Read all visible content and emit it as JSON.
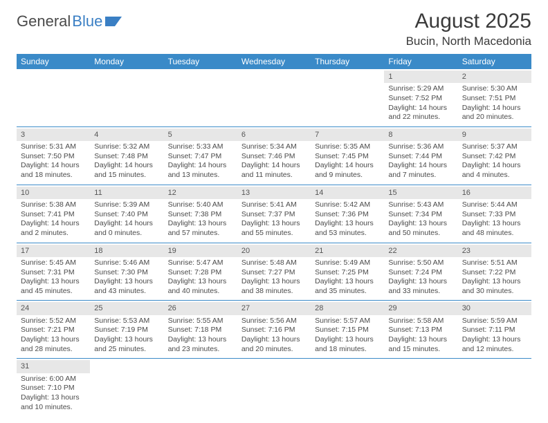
{
  "logo": {
    "word1": "General",
    "word2": "Blue"
  },
  "title": "August 2025",
  "location": "Bucin, North Macedonia",
  "colors": {
    "header_bg": "#3a8ac8",
    "header_text": "#ffffff",
    "daynum_bg": "#e7e7e7",
    "border": "#3a8ac8",
    "text": "#4a4a4a",
    "logo_blue": "#3a7fc4"
  },
  "weekdays": [
    "Sunday",
    "Monday",
    "Tuesday",
    "Wednesday",
    "Thursday",
    "Friday",
    "Saturday"
  ],
  "weeks": [
    [
      {
        "empty": true
      },
      {
        "empty": true
      },
      {
        "empty": true
      },
      {
        "empty": true
      },
      {
        "empty": true
      },
      {
        "day": "1",
        "sunrise": "Sunrise: 5:29 AM",
        "sunset": "Sunset: 7:52 PM",
        "daylight1": "Daylight: 14 hours",
        "daylight2": "and 22 minutes."
      },
      {
        "day": "2",
        "sunrise": "Sunrise: 5:30 AM",
        "sunset": "Sunset: 7:51 PM",
        "daylight1": "Daylight: 14 hours",
        "daylight2": "and 20 minutes."
      }
    ],
    [
      {
        "day": "3",
        "sunrise": "Sunrise: 5:31 AM",
        "sunset": "Sunset: 7:50 PM",
        "daylight1": "Daylight: 14 hours",
        "daylight2": "and 18 minutes."
      },
      {
        "day": "4",
        "sunrise": "Sunrise: 5:32 AM",
        "sunset": "Sunset: 7:48 PM",
        "daylight1": "Daylight: 14 hours",
        "daylight2": "and 15 minutes."
      },
      {
        "day": "5",
        "sunrise": "Sunrise: 5:33 AM",
        "sunset": "Sunset: 7:47 PM",
        "daylight1": "Daylight: 14 hours",
        "daylight2": "and 13 minutes."
      },
      {
        "day": "6",
        "sunrise": "Sunrise: 5:34 AM",
        "sunset": "Sunset: 7:46 PM",
        "daylight1": "Daylight: 14 hours",
        "daylight2": "and 11 minutes."
      },
      {
        "day": "7",
        "sunrise": "Sunrise: 5:35 AM",
        "sunset": "Sunset: 7:45 PM",
        "daylight1": "Daylight: 14 hours",
        "daylight2": "and 9 minutes."
      },
      {
        "day": "8",
        "sunrise": "Sunrise: 5:36 AM",
        "sunset": "Sunset: 7:44 PM",
        "daylight1": "Daylight: 14 hours",
        "daylight2": "and 7 minutes."
      },
      {
        "day": "9",
        "sunrise": "Sunrise: 5:37 AM",
        "sunset": "Sunset: 7:42 PM",
        "daylight1": "Daylight: 14 hours",
        "daylight2": "and 4 minutes."
      }
    ],
    [
      {
        "day": "10",
        "sunrise": "Sunrise: 5:38 AM",
        "sunset": "Sunset: 7:41 PM",
        "daylight1": "Daylight: 14 hours",
        "daylight2": "and 2 minutes."
      },
      {
        "day": "11",
        "sunrise": "Sunrise: 5:39 AM",
        "sunset": "Sunset: 7:40 PM",
        "daylight1": "Daylight: 14 hours",
        "daylight2": "and 0 minutes."
      },
      {
        "day": "12",
        "sunrise": "Sunrise: 5:40 AM",
        "sunset": "Sunset: 7:38 PM",
        "daylight1": "Daylight: 13 hours",
        "daylight2": "and 57 minutes."
      },
      {
        "day": "13",
        "sunrise": "Sunrise: 5:41 AM",
        "sunset": "Sunset: 7:37 PM",
        "daylight1": "Daylight: 13 hours",
        "daylight2": "and 55 minutes."
      },
      {
        "day": "14",
        "sunrise": "Sunrise: 5:42 AM",
        "sunset": "Sunset: 7:36 PM",
        "daylight1": "Daylight: 13 hours",
        "daylight2": "and 53 minutes."
      },
      {
        "day": "15",
        "sunrise": "Sunrise: 5:43 AM",
        "sunset": "Sunset: 7:34 PM",
        "daylight1": "Daylight: 13 hours",
        "daylight2": "and 50 minutes."
      },
      {
        "day": "16",
        "sunrise": "Sunrise: 5:44 AM",
        "sunset": "Sunset: 7:33 PM",
        "daylight1": "Daylight: 13 hours",
        "daylight2": "and 48 minutes."
      }
    ],
    [
      {
        "day": "17",
        "sunrise": "Sunrise: 5:45 AM",
        "sunset": "Sunset: 7:31 PM",
        "daylight1": "Daylight: 13 hours",
        "daylight2": "and 45 minutes."
      },
      {
        "day": "18",
        "sunrise": "Sunrise: 5:46 AM",
        "sunset": "Sunset: 7:30 PM",
        "daylight1": "Daylight: 13 hours",
        "daylight2": "and 43 minutes."
      },
      {
        "day": "19",
        "sunrise": "Sunrise: 5:47 AM",
        "sunset": "Sunset: 7:28 PM",
        "daylight1": "Daylight: 13 hours",
        "daylight2": "and 40 minutes."
      },
      {
        "day": "20",
        "sunrise": "Sunrise: 5:48 AM",
        "sunset": "Sunset: 7:27 PM",
        "daylight1": "Daylight: 13 hours",
        "daylight2": "and 38 minutes."
      },
      {
        "day": "21",
        "sunrise": "Sunrise: 5:49 AM",
        "sunset": "Sunset: 7:25 PM",
        "daylight1": "Daylight: 13 hours",
        "daylight2": "and 35 minutes."
      },
      {
        "day": "22",
        "sunrise": "Sunrise: 5:50 AM",
        "sunset": "Sunset: 7:24 PM",
        "daylight1": "Daylight: 13 hours",
        "daylight2": "and 33 minutes."
      },
      {
        "day": "23",
        "sunrise": "Sunrise: 5:51 AM",
        "sunset": "Sunset: 7:22 PM",
        "daylight1": "Daylight: 13 hours",
        "daylight2": "and 30 minutes."
      }
    ],
    [
      {
        "day": "24",
        "sunrise": "Sunrise: 5:52 AM",
        "sunset": "Sunset: 7:21 PM",
        "daylight1": "Daylight: 13 hours",
        "daylight2": "and 28 minutes."
      },
      {
        "day": "25",
        "sunrise": "Sunrise: 5:53 AM",
        "sunset": "Sunset: 7:19 PM",
        "daylight1": "Daylight: 13 hours",
        "daylight2": "and 25 minutes."
      },
      {
        "day": "26",
        "sunrise": "Sunrise: 5:55 AM",
        "sunset": "Sunset: 7:18 PM",
        "daylight1": "Daylight: 13 hours",
        "daylight2": "and 23 minutes."
      },
      {
        "day": "27",
        "sunrise": "Sunrise: 5:56 AM",
        "sunset": "Sunset: 7:16 PM",
        "daylight1": "Daylight: 13 hours",
        "daylight2": "and 20 minutes."
      },
      {
        "day": "28",
        "sunrise": "Sunrise: 5:57 AM",
        "sunset": "Sunset: 7:15 PM",
        "daylight1": "Daylight: 13 hours",
        "daylight2": "and 18 minutes."
      },
      {
        "day": "29",
        "sunrise": "Sunrise: 5:58 AM",
        "sunset": "Sunset: 7:13 PM",
        "daylight1": "Daylight: 13 hours",
        "daylight2": "and 15 minutes."
      },
      {
        "day": "30",
        "sunrise": "Sunrise: 5:59 AM",
        "sunset": "Sunset: 7:11 PM",
        "daylight1": "Daylight: 13 hours",
        "daylight2": "and 12 minutes."
      }
    ],
    [
      {
        "day": "31",
        "sunrise": "Sunrise: 6:00 AM",
        "sunset": "Sunset: 7:10 PM",
        "daylight1": "Daylight: 13 hours",
        "daylight2": "and 10 minutes."
      },
      {
        "empty": true
      },
      {
        "empty": true
      },
      {
        "empty": true
      },
      {
        "empty": true
      },
      {
        "empty": true
      },
      {
        "empty": true
      }
    ]
  ]
}
